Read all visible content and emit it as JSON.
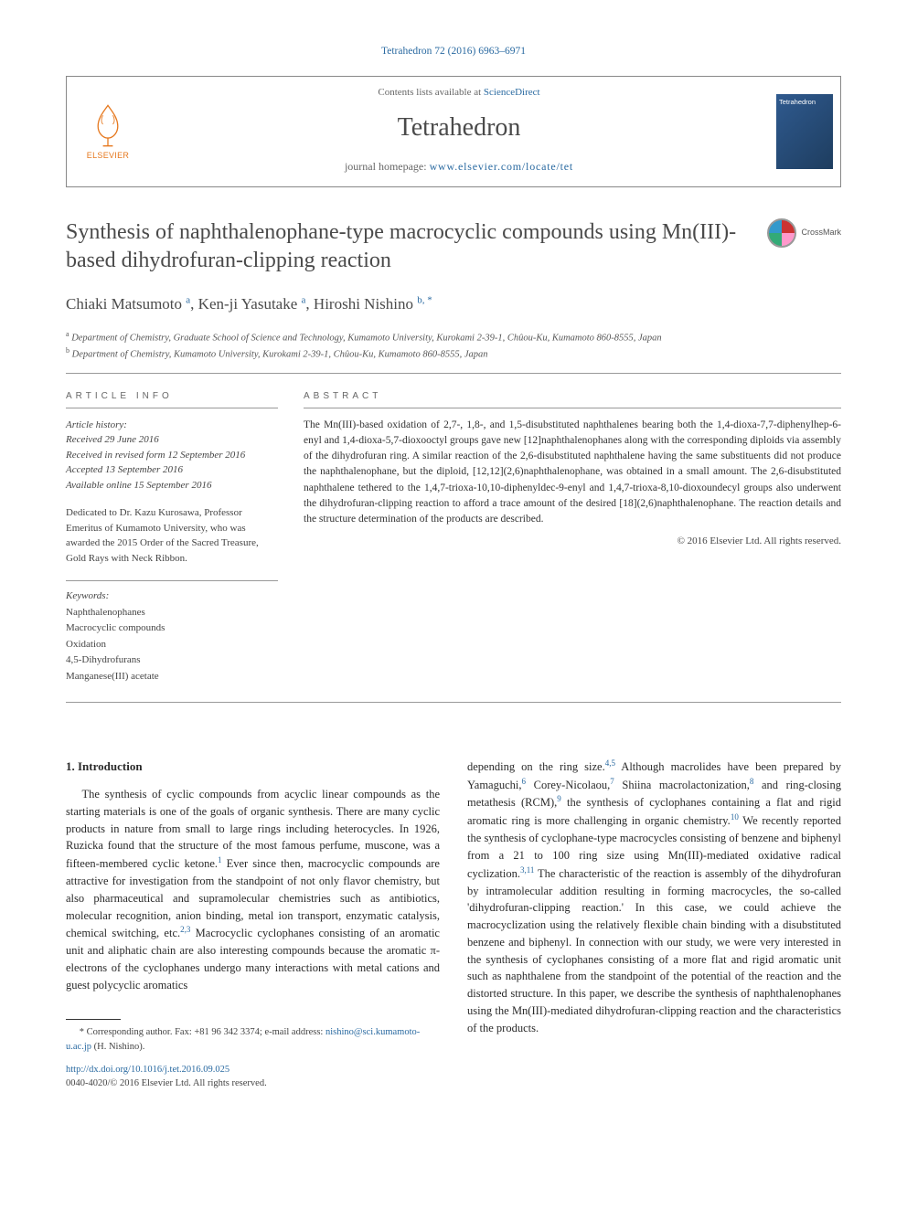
{
  "citation_line": "Tetrahedron 72 (2016) 6963–6971",
  "header": {
    "contents_text_prefix": "Contents lists available at ",
    "contents_link": "ScienceDirect",
    "journal_name": "Tetrahedron",
    "homepage_prefix": "journal homepage: ",
    "homepage_url": "www.elsevier.com/locate/tet",
    "publisher_name": "ELSEVIER",
    "cover_label": "Tetrahedron"
  },
  "article": {
    "title": "Synthesis of naphthalenophane-type macrocyclic compounds using Mn(III)-based dihydrofuran-clipping reaction",
    "crossmark_label": "CrossMark",
    "authors_html": "Chiaki Matsumoto <sup>a</sup>, Ken-ji Yasutake <sup>a</sup>, Hiroshi Nishino <sup>b, *</sup>",
    "affiliations": [
      {
        "sup": "a",
        "text": "Department of Chemistry, Graduate School of Science and Technology, Kumamoto University, Kurokami 2-39-1, Chûou-Ku, Kumamoto 860-8555, Japan"
      },
      {
        "sup": "b",
        "text": "Department of Chemistry, Kumamoto University, Kurokami 2-39-1, Chûou-Ku, Kumamoto 860-8555, Japan"
      }
    ]
  },
  "info": {
    "heading": "ARTICLE INFO",
    "history_label": "Article history:",
    "received": "Received 29 June 2016",
    "revised": "Received in revised form 12 September 2016",
    "accepted": "Accepted 13 September 2016",
    "online": "Available online 15 September 2016",
    "dedication": "Dedicated to Dr. Kazu Kurosawa, Professor Emeritus of Kumamoto University, who was awarded the 2015 Order of the Sacred Treasure, Gold Rays with Neck Ribbon.",
    "keywords_label": "Keywords:",
    "keywords": [
      "Naphthalenophanes",
      "Macrocyclic compounds",
      "Oxidation",
      "4,5-Dihydrofurans",
      "Manganese(III) acetate"
    ]
  },
  "abstract": {
    "heading": "ABSTRACT",
    "text": "The Mn(III)-based oxidation of 2,7-, 1,8-, and 1,5-disubstituted naphthalenes bearing both the 1,4-dioxa-7,7-diphenylhep-6-enyl and 1,4-dioxa-5,7-dioxooctyl groups gave new [12]naphthalenophanes along with the corresponding diploids via assembly of the dihydrofuran ring. A similar reaction of the 2,6-disubstituted naphthalene having the same substituents did not produce the naphthalenophane, but the diploid, [12,12](2,6)naphthalenophane, was obtained in a small amount. The 2,6-disubstituted naphthalene tethered to the 1,4,7-trioxa-10,10-diphenyldec-9-enyl and 1,4,7-trioxa-8,10-dioxoundecyl groups also underwent the dihydrofuran-clipping reaction to afford a trace amount of the desired [18](2,6)naphthalenophane. The reaction details and the structure determination of the products are described.",
    "copyright": "© 2016 Elsevier Ltd. All rights reserved."
  },
  "body": {
    "section_heading": "1. Introduction",
    "col1": "The synthesis of cyclic compounds from acyclic linear compounds as the starting materials is one of the goals of organic synthesis. There are many cyclic products in nature from small to large rings including heterocycles. In 1926, Ruzicka found that the structure of the most famous perfume, muscone, was a fifteen-membered cyclic ketone.¹ Ever since then, macrocyclic compounds are attractive for investigation from the standpoint of not only flavor chemistry, but also pharmaceutical and supramolecular chemistries such as antibiotics, molecular recognition, anion binding, metal ion transport, enzymatic catalysis, chemical switching, etc.²,³ Macrocyclic cyclophanes consisting of an aromatic unit and aliphatic chain are also interesting compounds because the aromatic π-electrons of the cyclophanes undergo many interactions with metal cations and guest polycyclic aromatics",
    "col2": "depending on the ring size.⁴,⁵ Although macrolides have been prepared by Yamaguchi,⁶ Corey-Nicolaou,⁷ Shiina macrolactonization,⁸ and ring-closing metathesis (RCM),⁹ the synthesis of cyclophanes containing a flat and rigid aromatic ring is more challenging in organic chemistry.¹⁰ We recently reported the synthesis of cyclophane-type macrocycles consisting of benzene and biphenyl from a 21 to 100 ring size using Mn(III)-mediated oxidative radical cyclization.³,¹¹ The characteristic of the reaction is assembly of the dihydrofuran by intramolecular addition resulting in forming macrocycles, the so-called 'dihydrofuran-clipping reaction.' In this case, we could achieve the macrocyclization using the relatively flexible chain binding with a disubstituted benzene and biphenyl. In connection with our study, we were very interested in the synthesis of cyclophanes consisting of a more flat and rigid aromatic unit such as naphthalene from the standpoint of the potential of the reaction and the distorted structure. In this paper, we describe the synthesis of naphthalenophanes using the Mn(III)-mediated dihydrofuran-clipping reaction and the characteristics of the products."
  },
  "footnote": {
    "text_prefix": "* Corresponding author. Fax: +81 96 342 3374; e-mail address: ",
    "email": "nishino@sci.kumamoto-u.ac.jp",
    "text_suffix": " (H. Nishino)."
  },
  "doi": {
    "url": "http://dx.doi.org/10.1016/j.tet.2016.09.025",
    "issn_line": "0040-4020/© 2016 Elsevier Ltd. All rights reserved."
  },
  "colors": {
    "link": "#2a6aa1",
    "text": "#2a2a2a",
    "heading_grey": "#4a4a4a",
    "orange": "#e6781e",
    "border": "#999999"
  },
  "typography": {
    "title_fontsize_pt": 18,
    "authors_fontsize_pt": 13,
    "body_fontsize_pt": 9.5,
    "abstract_fontsize_pt": 9,
    "journal_name_fontsize_pt": 21
  }
}
